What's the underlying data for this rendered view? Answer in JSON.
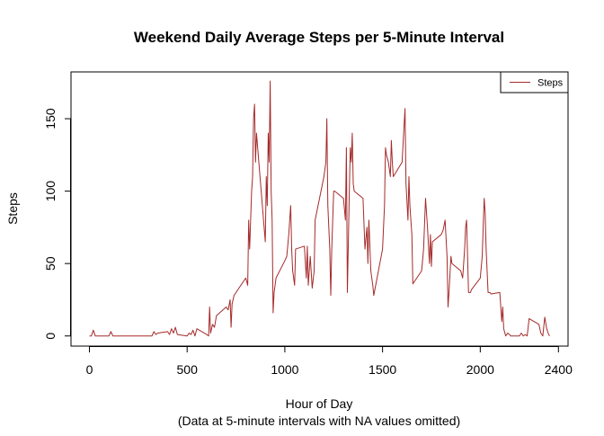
{
  "chart_data": {
    "type": "line",
    "title": "Weekend Daily Average Steps per 5-Minute Interval",
    "xlabel": "Hour of Day",
    "caption": "(Data at 5-minute intervals with NA values omitted)",
    "ylabel": "Steps",
    "x": [
      0,
      10,
      20,
      30,
      40,
      50,
      100,
      110,
      120,
      130,
      140,
      150,
      200,
      210,
      220,
      230,
      240,
      250,
      300,
      310,
      320,
      330,
      340,
      350,
      400,
      410,
      420,
      430,
      440,
      450,
      500,
      510,
      520,
      530,
      540,
      550,
      600,
      610,
      615,
      620,
      630,
      640,
      650,
      700,
      710,
      720,
      725,
      730,
      740,
      750,
      800,
      810,
      815,
      820,
      830,
      835,
      840,
      845,
      850,
      855,
      900,
      905,
      910,
      915,
      920,
      925,
      930,
      935,
      940,
      945,
      950,
      955,
      1000,
      1010,
      1020,
      1030,
      1035,
      1040,
      1050,
      1055,
      1100,
      1110,
      1115,
      1120,
      1130,
      1140,
      1150,
      1155,
      1200,
      1210,
      1215,
      1220,
      1230,
      1235,
      1240,
      1250,
      1255,
      1300,
      1310,
      1315,
      1320,
      1330,
      1335,
      1340,
      1345,
      1350,
      1355,
      1400,
      1410,
      1420,
      1425,
      1430,
      1440,
      1450,
      1455,
      1500,
      1510,
      1515,
      1520,
      1530,
      1540,
      1545,
      1550,
      1555,
      1600,
      1610,
      1615,
      1620,
      1630,
      1635,
      1640,
      1650,
      1655,
      1700,
      1710,
      1720,
      1730,
      1740,
      1745,
      1750,
      1755,
      1800,
      1810,
      1820,
      1830,
      1835,
      1840,
      1850,
      1855,
      1900,
      1910,
      1920,
      1925,
      1930,
      1940,
      1950,
      1955,
      2000,
      2010,
      2020,
      2025,
      2030,
      2040,
      2050,
      2055,
      2100,
      2110,
      2115,
      2120,
      2130,
      2140,
      2150,
      2155,
      2200,
      2210,
      2220,
      2230,
      2240,
      2250,
      2300,
      2310,
      2320,
      2330,
      2340,
      2350,
      2355
    ],
    "series": [
      {
        "name": "Steps",
        "color": "#a52a2a",
        "values": [
          0,
          0,
          4,
          0,
          0,
          0,
          0,
          3,
          0,
          0,
          0,
          0,
          0,
          0,
          0,
          0,
          0,
          0,
          0,
          0,
          0,
          3,
          1,
          2,
          3,
          1,
          5,
          2,
          6,
          1,
          0,
          2,
          1,
          4,
          0,
          5,
          1,
          0,
          20,
          2,
          8,
          6,
          14,
          20,
          18,
          25,
          6,
          22,
          28,
          30,
          40,
          35,
          80,
          60,
          100,
          110,
          150,
          160,
          120,
          140,
          65,
          110,
          90,
          140,
          120,
          176,
          100,
          80,
          16,
          30,
          35,
          40,
          52,
          55,
          70,
          90,
          60,
          45,
          35,
          60,
          62,
          40,
          62,
          35,
          55,
          33,
          45,
          80,
          110,
          120,
          150,
          90,
          60,
          28,
          60,
          100,
          100,
          95,
          80,
          130,
          30,
          100,
          130,
          120,
          140,
          105,
          100,
          95,
          60,
          75,
          50,
          80,
          45,
          35,
          28,
          60,
          90,
          130,
          125,
          120,
          110,
          135,
          120,
          110,
          120,
          145,
          157,
          105,
          80,
          110,
          90,
          70,
          36,
          45,
          60,
          95,
          75,
          50,
          70,
          48,
          65,
          70,
          73,
          80,
          55,
          20,
          30,
          55,
          50,
          45,
          40,
          60,
          75,
          80,
          30,
          30,
          32,
          40,
          55,
          95,
          85,
          60,
          30,
          30,
          29,
          30,
          10,
          20,
          5,
          0,
          2,
          1,
          0,
          0,
          2,
          0,
          1,
          0,
          12,
          8,
          2,
          0,
          13,
          5,
          1,
          0
        ]
      }
    ],
    "xlim": [
      -94.2,
      2449.2
    ],
    "ylim": [
      -7,
      182.3
    ],
    "xticks": [
      0,
      500,
      1000,
      1500,
      2000,
      2400
    ],
    "yticks": [
      0,
      50,
      100,
      150
    ],
    "legend": "top-right"
  }
}
